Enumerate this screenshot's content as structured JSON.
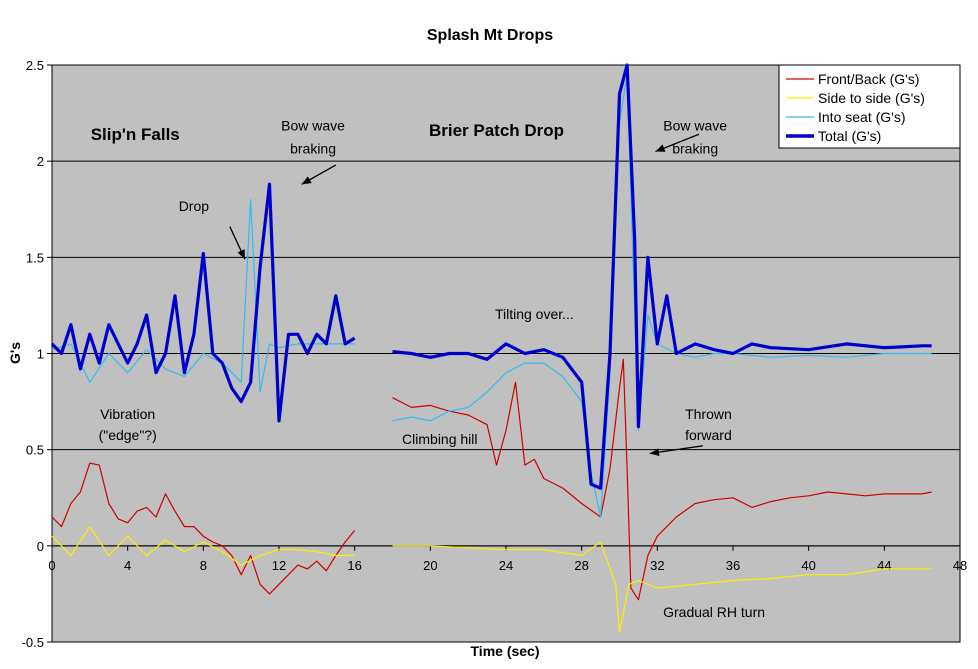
{
  "chart_data": {
    "type": "line",
    "title": "Splash Mt Drops",
    "xlabel": "Time (sec)",
    "ylabel": "G's",
    "xlim": [
      0,
      48
    ],
    "ylim": [
      -0.5,
      2.5
    ],
    "x_ticks": [
      "0",
      "4",
      "8",
      "12",
      "16",
      "20",
      "24",
      "28",
      "32",
      "36",
      "40",
      "44",
      "48"
    ],
    "y_ticks": [
      "-0.5",
      "0",
      "0.5",
      "1",
      "1.5",
      "2",
      "2.5"
    ],
    "grid": "horizontal",
    "legend_position": "top-right",
    "legend": [
      "Front/Back (G's)",
      "Side to side (G's)",
      "Into seat (G's)",
      "Total (G's)"
    ],
    "colors": {
      "front_back": "#cc0000",
      "side_to_side": "#ffee00",
      "into_seat": "#33bbee",
      "total": "#0000cc",
      "plot_background": "#c0c0c0"
    },
    "series": [
      {
        "name": "Front/Back (G's)",
        "segments": [
          [
            [
              0,
              0.15
            ],
            [
              0.5,
              0.1
            ],
            [
              1,
              0.22
            ],
            [
              1.5,
              0.28
            ],
            [
              2,
              0.43
            ],
            [
              2.5,
              0.42
            ],
            [
              3,
              0.22
            ],
            [
              3.5,
              0.14
            ],
            [
              4,
              0.12
            ],
            [
              4.5,
              0.18
            ],
            [
              5,
              0.2
            ],
            [
              5.5,
              0.15
            ],
            [
              6,
              0.27
            ],
            [
              6.5,
              0.18
            ],
            [
              7,
              0.1
            ],
            [
              7.5,
              0.1
            ],
            [
              8,
              0.05
            ],
            [
              8.5,
              0.02
            ],
            [
              9,
              0
            ],
            [
              9.5,
              -0.05
            ],
            [
              10,
              -0.15
            ],
            [
              10.5,
              -0.05
            ],
            [
              11,
              -0.2
            ],
            [
              11.5,
              -0.25
            ],
            [
              12,
              -0.2
            ],
            [
              12.5,
              -0.15
            ],
            [
              13,
              -0.1
            ],
            [
              13.5,
              -0.12
            ],
            [
              14,
              -0.08
            ],
            [
              14.5,
              -0.13
            ],
            [
              15,
              -0.05
            ],
            [
              15.5,
              0.02
            ],
            [
              16,
              0.08
            ]
          ],
          [
            [
              18,
              0.77
            ],
            [
              19,
              0.72
            ],
            [
              20,
              0.73
            ],
            [
              21,
              0.7
            ],
            [
              22,
              0.68
            ],
            [
              23,
              0.63
            ],
            [
              23.5,
              0.42
            ],
            [
              24,
              0.6
            ],
            [
              24.5,
              0.85
            ],
            [
              25,
              0.42
            ],
            [
              25.5,
              0.45
            ],
            [
              26,
              0.35
            ],
            [
              27,
              0.3
            ],
            [
              28,
              0.22
            ],
            [
              29,
              0.15
            ],
            [
              29.5,
              0.4
            ],
            [
              30,
              0.82
            ],
            [
              30.2,
              0.97
            ],
            [
              30.4,
              0.4
            ],
            [
              30.6,
              -0.22
            ],
            [
              31,
              -0.28
            ],
            [
              31.5,
              -0.05
            ],
            [
              32,
              0.05
            ],
            [
              33,
              0.15
            ],
            [
              34,
              0.22
            ],
            [
              35,
              0.24
            ],
            [
              36,
              0.25
            ],
            [
              37,
              0.2
            ],
            [
              38,
              0.23
            ],
            [
              39,
              0.25
            ],
            [
              40,
              0.26
            ],
            [
              41,
              0.28
            ],
            [
              42,
              0.27
            ],
            [
              43,
              0.26
            ],
            [
              44,
              0.27
            ],
            [
              45,
              0.27
            ],
            [
              46,
              0.27
            ],
            [
              46.5,
              0.28
            ]
          ]
        ]
      },
      {
        "name": "Side to side (G's)",
        "segments": [
          [
            [
              0,
              0.05
            ],
            [
              1,
              -0.05
            ],
            [
              2,
              0.1
            ],
            [
              3,
              -0.05
            ],
            [
              4,
              0.05
            ],
            [
              5,
              -0.05
            ],
            [
              6,
              0.03
            ],
            [
              7,
              -0.03
            ],
            [
              8,
              0.02
            ],
            [
              9,
              -0.03
            ],
            [
              10,
              -0.1
            ],
            [
              11,
              -0.05
            ],
            [
              12,
              -0.02
            ],
            [
              13,
              -0.02
            ],
            [
              14,
              -0.03
            ],
            [
              15,
              -0.05
            ],
            [
              16,
              -0.05
            ]
          ],
          [
            [
              18,
              0
            ],
            [
              20,
              0
            ],
            [
              22,
              -0.01
            ],
            [
              24,
              -0.02
            ],
            [
              26,
              -0.02
            ],
            [
              28,
              -0.05
            ],
            [
              29,
              0.02
            ],
            [
              29.8,
              -0.2
            ],
            [
              30,
              -0.45
            ],
            [
              30.5,
              -0.2
            ],
            [
              31,
              -0.18
            ],
            [
              32,
              -0.22
            ],
            [
              34,
              -0.2
            ],
            [
              36,
              -0.18
            ],
            [
              38,
              -0.17
            ],
            [
              40,
              -0.15
            ],
            [
              42,
              -0.15
            ],
            [
              44,
              -0.12
            ],
            [
              46,
              -0.12
            ],
            [
              46.5,
              -0.12
            ]
          ]
        ]
      },
      {
        "name": "Into seat (G's)",
        "segments": [
          [
            [
              0,
              1.02
            ],
            [
              1,
              1.05
            ],
            [
              2,
              0.85
            ],
            [
              3,
              1.0
            ],
            [
              4,
              0.9
            ],
            [
              5,
              1.02
            ],
            [
              6,
              0.92
            ],
            [
              7,
              0.88
            ],
            [
              8,
              1.0
            ],
            [
              9,
              0.95
            ],
            [
              10,
              0.85
            ],
            [
              10.5,
              1.8
            ],
            [
              11,
              0.8
            ],
            [
              11.5,
              1.05
            ],
            [
              12,
              1.03
            ],
            [
              13,
              1.05
            ],
            [
              14,
              1.05
            ],
            [
              15,
              1.05
            ],
            [
              16,
              1.05
            ]
          ],
          [
            [
              18,
              0.65
            ],
            [
              19,
              0.67
            ],
            [
              20,
              0.65
            ],
            [
              21,
              0.7
            ],
            [
              22,
              0.72
            ],
            [
              23,
              0.8
            ],
            [
              24,
              0.9
            ],
            [
              25,
              0.95
            ],
            [
              26,
              0.95
            ],
            [
              27,
              0.88
            ],
            [
              28,
              0.75
            ],
            [
              28.5,
              0.38
            ],
            [
              29,
              0.15
            ],
            [
              29.5,
              0.9
            ],
            [
              30,
              2.2
            ],
            [
              30.4,
              2.45
            ],
            [
              31,
              0.6
            ],
            [
              31.5,
              1.2
            ],
            [
              32,
              1.05
            ],
            [
              33,
              1.0
            ],
            [
              34,
              0.98
            ],
            [
              35,
              1.0
            ],
            [
              36,
              1.0
            ],
            [
              38,
              0.98
            ],
            [
              40,
              0.99
            ],
            [
              42,
              0.98
            ],
            [
              44,
              1.0
            ],
            [
              46,
              1.0
            ],
            [
              46.5,
              1.0
            ]
          ]
        ]
      },
      {
        "name": "Total (G's)",
        "segments": [
          [
            [
              0,
              1.05
            ],
            [
              0.5,
              1.0
            ],
            [
              1,
              1.15
            ],
            [
              1.5,
              0.92
            ],
            [
              2,
              1.1
            ],
            [
              2.5,
              0.95
            ],
            [
              3,
              1.15
            ],
            [
              3.5,
              1.05
            ],
            [
              4,
              0.95
            ],
            [
              4.5,
              1.05
            ],
            [
              5,
              1.2
            ],
            [
              5.5,
              0.9
            ],
            [
              6,
              1.0
            ],
            [
              6.5,
              1.3
            ],
            [
              7,
              0.9
            ],
            [
              7.5,
              1.1
            ],
            [
              8,
              1.52
            ],
            [
              8.5,
              1.0
            ],
            [
              9,
              0.95
            ],
            [
              9.5,
              0.82
            ],
            [
              10,
              0.75
            ],
            [
              10.5,
              0.85
            ],
            [
              11,
              1.45
            ],
            [
              11.5,
              1.88
            ],
            [
              12,
              0.65
            ],
            [
              12.5,
              1.1
            ],
            [
              13,
              1.1
            ],
            [
              13.5,
              1.0
            ],
            [
              14,
              1.1
            ],
            [
              14.5,
              1.05
            ],
            [
              15,
              1.3
            ],
            [
              15.5,
              1.05
            ],
            [
              16,
              1.08
            ]
          ],
          [
            [
              18,
              1.01
            ],
            [
              19,
              1.0
            ],
            [
              20,
              0.98
            ],
            [
              21,
              1.0
            ],
            [
              22,
              1.0
            ],
            [
              23,
              0.97
            ],
            [
              24,
              1.05
            ],
            [
              25,
              1.0
            ],
            [
              26,
              1.02
            ],
            [
              27,
              0.98
            ],
            [
              28,
              0.85
            ],
            [
              28.5,
              0.32
            ],
            [
              29,
              0.3
            ],
            [
              29.5,
              1.0
            ],
            [
              30,
              2.35
            ],
            [
              30.4,
              2.5
            ],
            [
              30.8,
              1.6
            ],
            [
              31,
              0.62
            ],
            [
              31.5,
              1.5
            ],
            [
              32,
              1.05
            ],
            [
              32.5,
              1.3
            ],
            [
              33,
              1.0
            ],
            [
              34,
              1.05
            ],
            [
              35,
              1.02
            ],
            [
              36,
              1.0
            ],
            [
              37,
              1.05
            ],
            [
              38,
              1.03
            ],
            [
              40,
              1.02
            ],
            [
              42,
              1.05
            ],
            [
              44,
              1.03
            ],
            [
              46,
              1.04
            ],
            [
              46.5,
              1.04
            ]
          ]
        ]
      }
    ],
    "annotations": [
      {
        "text": "Slip'n Falls",
        "x": 4.4,
        "y": 2.11,
        "style": "bold"
      },
      {
        "text": "Brier Patch Drop",
        "x": 23.5,
        "y": 2.13,
        "style": "bold"
      },
      {
        "text": "Bow wave",
        "x": 13.8,
        "y": 2.16
      },
      {
        "text": "braking",
        "x": 13.8,
        "y": 2.04
      },
      {
        "text": "Bow wave",
        "x": 34.0,
        "y": 2.16
      },
      {
        "text": "braking",
        "x": 34.0,
        "y": 2.04
      },
      {
        "text": "Drop",
        "x": 7.5,
        "y": 1.74
      },
      {
        "text": "Tilting over...",
        "x": 25.5,
        "y": 1.18
      },
      {
        "text": "Vibration",
        "x": 4.0,
        "y": 0.66
      },
      {
        "text": "(\"edge\"?)",
        "x": 4.0,
        "y": 0.55
      },
      {
        "text": "Climbing hill",
        "x": 20.5,
        "y": 0.53
      },
      {
        "text": "Thrown",
        "x": 34.7,
        "y": 0.66
      },
      {
        "text": "forward",
        "x": 34.7,
        "y": 0.55
      },
      {
        "text": "Gradual RH turn",
        "x": 35.0,
        "y": -0.37
      }
    ],
    "arrows": [
      {
        "from": [
          15.0,
          1.98
        ],
        "to": [
          13.2,
          1.88
        ]
      },
      {
        "from": [
          34.2,
          2.14
        ],
        "to": [
          31.9,
          2.05
        ]
      },
      {
        "from": [
          9.4,
          1.66
        ],
        "to": [
          10.2,
          1.49
        ]
      },
      {
        "from": [
          34.4,
          0.52
        ],
        "to": [
          31.6,
          0.48
        ]
      }
    ]
  }
}
